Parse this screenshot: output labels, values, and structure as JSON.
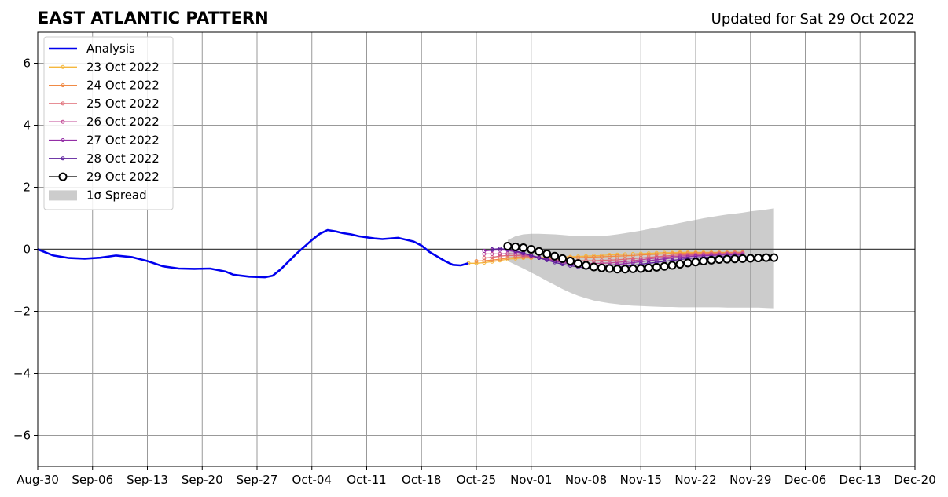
{
  "chart_data": {
    "type": "line",
    "title": "EAST ATLANTIC PATTERN",
    "subtitle": "Updated for Sat 29 Oct 2022",
    "xlabel": "",
    "ylabel": "",
    "xlim": [
      "2022-08-30",
      "2022-12-20"
    ],
    "ylim": [
      -7,
      7
    ],
    "x_ticks": [
      "Aug-30",
      "Sep-06",
      "Sep-13",
      "Sep-20",
      "Sep-27",
      "Oct-04",
      "Oct-11",
      "Oct-18",
      "Oct-25",
      "Nov-01",
      "Nov-08",
      "Nov-15",
      "Nov-22",
      "Nov-29",
      "Dec-06",
      "Dec-13",
      "Dec-20"
    ],
    "y_ticks": [
      {
        "value": 6,
        "label": "6"
      },
      {
        "value": 4,
        "label": "4"
      },
      {
        "value": 2,
        "label": "2"
      },
      {
        "value": 0,
        "label": "0"
      },
      {
        "value": -2,
        "label": "−2"
      },
      {
        "value": -4,
        "label": "−4"
      },
      {
        "value": -6,
        "label": "−6"
      }
    ],
    "grid": true,
    "legend_position": "top-left",
    "legend": [
      "Analysis",
      "23 Oct 2022",
      "24 Oct 2022",
      "25 Oct 2022",
      "26 Oct 2022",
      "27 Oct 2022",
      "28 Oct 2022",
      "29 Oct 2022",
      "1σ Spread"
    ],
    "analysis": {
      "name": "Analysis",
      "color": "#0000ee",
      "dates": [
        "2022-08-30",
        "2022-09-01",
        "2022-09-03",
        "2022-09-05",
        "2022-09-07",
        "2022-09-09",
        "2022-09-11",
        "2022-09-13",
        "2022-09-15",
        "2022-09-17",
        "2022-09-19",
        "2022-09-21",
        "2022-09-23",
        "2022-09-24",
        "2022-09-26",
        "2022-09-28",
        "2022-09-29",
        "2022-09-30",
        "2022-10-02",
        "2022-10-04",
        "2022-10-05",
        "2022-10-06",
        "2022-10-07",
        "2022-10-08",
        "2022-10-09",
        "2022-10-10",
        "2022-10-12",
        "2022-10-13",
        "2022-10-15",
        "2022-10-17",
        "2022-10-18",
        "2022-10-19",
        "2022-10-21",
        "2022-10-22",
        "2022-10-23",
        "2022-10-24"
      ],
      "values": [
        0.0,
        -0.2,
        -0.28,
        -0.3,
        -0.27,
        -0.2,
        -0.25,
        -0.38,
        -0.55,
        -0.62,
        -0.63,
        -0.62,
        -0.72,
        -0.82,
        -0.88,
        -0.9,
        -0.85,
        -0.65,
        -0.15,
        0.3,
        0.5,
        0.62,
        0.58,
        0.52,
        0.48,
        0.42,
        0.35,
        0.33,
        0.37,
        0.25,
        0.12,
        -0.08,
        -0.38,
        -0.5,
        -0.52,
        -0.45
      ]
    },
    "forecasts": [
      {
        "name": "23 Oct 2022",
        "color": "#f5b73d",
        "start": "2022-10-24",
        "values": [
          -0.45,
          -0.45,
          -0.43,
          -0.4,
          -0.36,
          -0.32,
          -0.3,
          -0.28,
          -0.28,
          -0.27,
          -0.26,
          -0.26,
          -0.25,
          -0.24,
          -0.23,
          -0.22,
          -0.21,
          -0.2,
          -0.18,
          -0.17,
          -0.16,
          -0.15,
          -0.14,
          -0.13,
          -0.12,
          -0.11,
          -0.11,
          -0.1,
          -0.1,
          -0.1,
          -0.1,
          -0.1,
          -0.1,
          -0.1,
          -0.1,
          -0.1
        ]
      },
      {
        "name": "24 Oct 2022",
        "color": "#f08a45",
        "start": "2022-10-25",
        "values": [
          -0.38,
          -0.37,
          -0.35,
          -0.32,
          -0.28,
          -0.26,
          -0.26,
          -0.27,
          -0.27,
          -0.28,
          -0.28,
          -0.28,
          -0.27,
          -0.27,
          -0.26,
          -0.25,
          -0.24,
          -0.23,
          -0.22,
          -0.21,
          -0.2,
          -0.18,
          -0.17,
          -0.16,
          -0.15,
          -0.14,
          -0.13,
          -0.13,
          -0.12,
          -0.12,
          -0.11,
          -0.11,
          -0.11,
          -0.1,
          -0.1
        ]
      },
      {
        "name": "25 Oct 2022",
        "color": "#df6a74",
        "start": "2022-10-26",
        "values": [
          -0.28,
          -0.26,
          -0.22,
          -0.2,
          -0.2,
          -0.22,
          -0.24,
          -0.27,
          -0.3,
          -0.33,
          -0.35,
          -0.36,
          -0.37,
          -0.37,
          -0.37,
          -0.36,
          -0.35,
          -0.34,
          -0.32,
          -0.3,
          -0.28,
          -0.26,
          -0.24,
          -0.22,
          -0.2,
          -0.18,
          -0.17,
          -0.16,
          -0.15,
          -0.14,
          -0.13,
          -0.13,
          -0.12,
          -0.12
        ]
      },
      {
        "name": "26 Oct 2022",
        "color": "#c24a95",
        "start": "2022-10-26",
        "values": [
          -0.15,
          -0.15,
          -0.15,
          -0.14,
          -0.15,
          -0.18,
          -0.22,
          -0.27,
          -0.32,
          -0.36,
          -0.4,
          -0.43,
          -0.45,
          -0.46,
          -0.46,
          -0.45,
          -0.44,
          -0.42,
          -0.4,
          -0.37,
          -0.34,
          -0.31,
          -0.28,
          -0.26,
          -0.24,
          -0.22,
          -0.2,
          -0.19,
          -0.18,
          -0.17,
          -0.16,
          -0.15,
          -0.15,
          -0.14
        ]
      },
      {
        "name": "27 Oct 2022",
        "color": "#942ea6",
        "start": "2022-10-26",
        "values": [
          -0.05,
          -0.03,
          -0.02,
          -0.03,
          -0.08,
          -0.14,
          -0.2,
          -0.26,
          -0.32,
          -0.38,
          -0.43,
          -0.47,
          -0.5,
          -0.52,
          -0.53,
          -0.52,
          -0.51,
          -0.49,
          -0.46,
          -0.43,
          -0.4,
          -0.37,
          -0.34,
          -0.31,
          -0.28,
          -0.26,
          -0.24,
          -0.22,
          -0.21,
          -0.2,
          -0.19,
          -0.18,
          -0.18,
          -0.17
        ]
      },
      {
        "name": "28 Oct 2022",
        "color": "#5b1e9c",
        "start": "2022-10-27",
        "values": [
          0.0,
          0.02,
          0.0,
          -0.05,
          -0.12,
          -0.2,
          -0.28,
          -0.35,
          -0.42,
          -0.48,
          -0.53,
          -0.57,
          -0.6,
          -0.61,
          -0.61,
          -0.6,
          -0.58,
          -0.55,
          -0.52,
          -0.48,
          -0.45,
          -0.42,
          -0.39,
          -0.36,
          -0.33,
          -0.3,
          -0.28,
          -0.26,
          -0.25,
          -0.24,
          -0.23,
          -0.22,
          -0.22
        ]
      }
    ],
    "latest": {
      "name": "29 Oct 2022",
      "color": "#000000",
      "start": "2022-10-29",
      "values": [
        0.1,
        0.08,
        0.05,
        0.0,
        -0.07,
        -0.15,
        -0.22,
        -0.3,
        -0.38,
        -0.46,
        -0.52,
        -0.57,
        -0.6,
        -0.62,
        -0.64,
        -0.64,
        -0.63,
        -0.62,
        -0.6,
        -0.58,
        -0.55,
        -0.52,
        -0.48,
        -0.44,
        -0.41,
        -0.38,
        -0.35,
        -0.33,
        -0.32,
        -0.31,
        -0.3,
        -0.29,
        -0.28,
        -0.27,
        -0.27
      ]
    },
    "spread": {
      "name": "1σ Spread",
      "color": "#cccccc",
      "start": "2022-10-29",
      "step_days": 1,
      "upper": [
        0.3,
        0.42,
        0.48,
        0.5,
        0.5,
        0.49,
        0.48,
        0.46,
        0.44,
        0.43,
        0.42,
        0.42,
        0.43,
        0.45,
        0.48,
        0.52,
        0.56,
        0.6,
        0.65,
        0.7,
        0.75,
        0.8,
        0.85,
        0.9,
        0.95,
        1.0,
        1.04,
        1.08,
        1.12,
        1.15,
        1.18,
        1.22,
        1.25,
        1.28,
        1.32
      ],
      "lower": [
        -0.38,
        -0.5,
        -0.62,
        -0.75,
        -0.88,
        -1.02,
        -1.15,
        -1.28,
        -1.4,
        -1.5,
        -1.58,
        -1.65,
        -1.7,
        -1.74,
        -1.77,
        -1.8,
        -1.82,
        -1.83,
        -1.84,
        -1.85,
        -1.86,
        -1.86,
        -1.87,
        -1.87,
        -1.87,
        -1.87,
        -1.87,
        -1.87,
        -1.88,
        -1.88,
        -1.88,
        -1.88,
        -1.88,
        -1.89,
        -1.9
      ]
    }
  }
}
